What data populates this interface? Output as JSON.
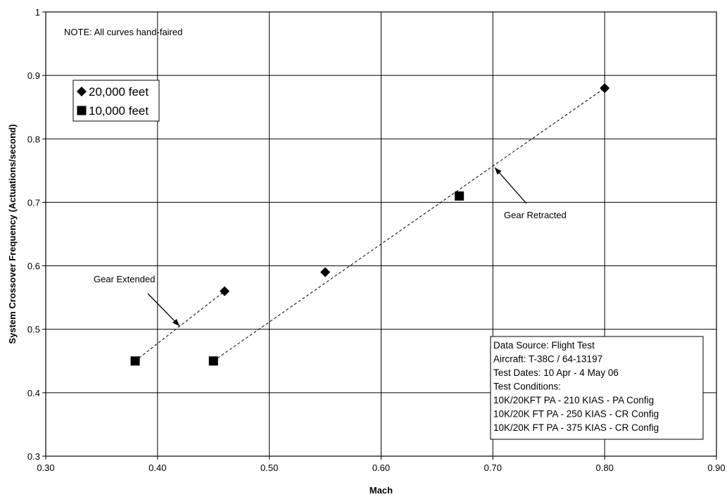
{
  "chart_data": {
    "type": "scatter",
    "xlabel": "Mach",
    "ylabel": "System Crossover Frequency (Actuations/second)",
    "xlim": [
      0.3,
      0.9
    ],
    "ylim": [
      0.3,
      1.0
    ],
    "xticks": [
      "0.30",
      "0.40",
      "0.50",
      "0.60",
      "0.70",
      "0.80",
      "0.90"
    ],
    "yticks": [
      "0.3",
      "0.4",
      "0.5",
      "0.6",
      "0.7",
      "0.8",
      "0.9",
      "1"
    ],
    "grid": true,
    "series": [
      {
        "name": "20,000 feet",
        "marker": "diamond",
        "color": "#000000",
        "points": [
          {
            "x": 0.46,
            "y": 0.56
          },
          {
            "x": 0.55,
            "y": 0.59
          },
          {
            "x": 0.8,
            "y": 0.88
          }
        ]
      },
      {
        "name": "10,000 feet",
        "marker": "square",
        "color": "#000000",
        "points": [
          {
            "x": 0.38,
            "y": 0.45
          },
          {
            "x": 0.45,
            "y": 0.45
          },
          {
            "x": 0.67,
            "y": 0.71
          }
        ]
      }
    ],
    "fit_lines": [
      {
        "label": "Gear Extended",
        "from": {
          "x": 0.38,
          "y": 0.45
        },
        "to": {
          "x": 0.46,
          "y": 0.56
        },
        "style": "dashed"
      },
      {
        "label": "Gear Retracted",
        "from": {
          "x": 0.45,
          "y": 0.45
        },
        "to": {
          "x": 0.8,
          "y": 0.88
        },
        "style": "dashed"
      }
    ],
    "annotations": {
      "note": "NOTE: All curves hand-faired",
      "gear_extended": "Gear Extended",
      "gear_retracted": "Gear Retracted"
    },
    "legend_position": "top-left",
    "info_box": [
      "Data Source: Flight Test",
      "Aircraft: T-38C / 64-13197",
      "Test Dates: 10 Apr - 4 May 06",
      "Test Conditions:",
      "10K/20KFT PA - 210 KIAS - PA Config",
      "10K/20K FT PA - 250 KIAS - CR Config",
      "10K/20K FT PA - 375 KIAS - CR Config"
    ]
  }
}
